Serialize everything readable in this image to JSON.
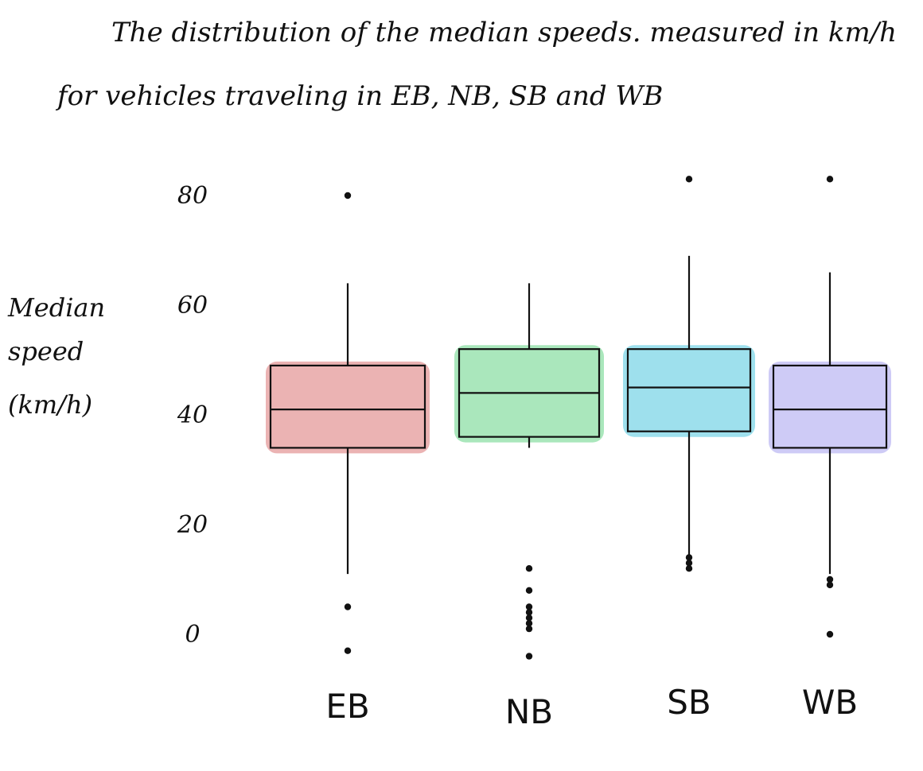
{
  "chart_data": {
    "type": "box",
    "title_lines": [
      "The  distribution  of  the  median  speeds.  measured  in  km/h",
      "for  vehicles  traveling  in  EB, NB, SB  and  WB"
    ],
    "ylabel_lines": [
      "Median",
      "speed",
      "(km/h)"
    ],
    "xlabel": "",
    "ylim": [
      0,
      80
    ],
    "yticks": [
      {
        "value": 0,
        "label": "0"
      },
      {
        "value": 20,
        "label": "20"
      },
      {
        "value": 40,
        "label": "40"
      },
      {
        "value": 60,
        "label": "60"
      },
      {
        "value": 80,
        "label": "80"
      }
    ],
    "grid": false,
    "legend": "none",
    "categories": [
      "EB",
      "NB",
      "SB",
      "WB"
    ],
    "series": [
      {
        "category": "EB",
        "color": "#e8a6a6",
        "whisker_low": 11,
        "q1": 34,
        "median": 41,
        "q3": 49,
        "whisker_high": 64,
        "outliers": [
          80,
          5,
          -3
        ]
      },
      {
        "category": "NB",
        "color": "#9be3b0",
        "whisker_low": 34,
        "q1": 36,
        "median": 44,
        "q3": 52,
        "whisker_high": 64,
        "outliers": [
          12,
          8,
          5,
          4,
          3,
          2,
          1,
          -4
        ]
      },
      {
        "category": "SB",
        "color": "#8ddbea",
        "whisker_low": 13,
        "q1": 37,
        "median": 45,
        "q3": 52,
        "whisker_high": 69,
        "outliers": [
          83,
          14,
          13,
          12
        ]
      },
      {
        "category": "WB",
        "color": "#c6c2f5",
        "whisker_low": 11,
        "q1": 34,
        "median": 41,
        "q3": 49,
        "whisker_high": 66,
        "outliers": [
          83,
          10,
          9,
          0
        ]
      }
    ]
  }
}
